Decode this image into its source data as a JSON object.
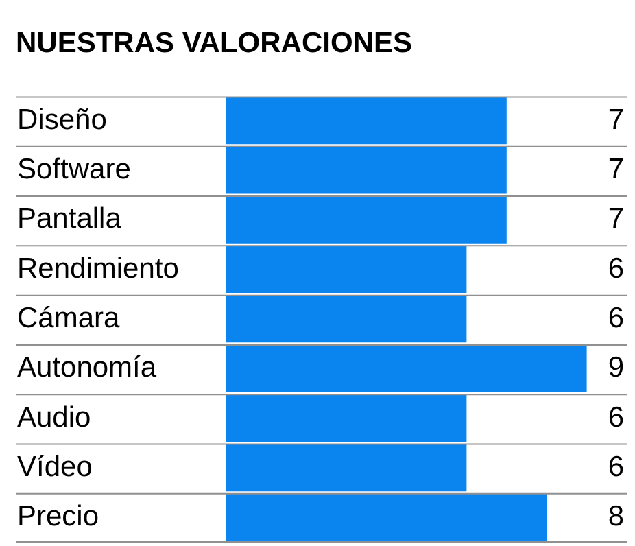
{
  "chart_data": {
    "type": "bar",
    "orientation": "horizontal",
    "title": "NUESTRAS VALORACIONES",
    "categories": [
      "Diseño",
      "Software",
      "Pantalla",
      "Rendimiento",
      "Cámara",
      "Autonomía",
      "Audio",
      "Vídeo",
      "Precio"
    ],
    "values": [
      7,
      7,
      7,
      6,
      6,
      9,
      6,
      6,
      8
    ],
    "color": "#0a84ee",
    "xlim": [
      0,
      10
    ],
    "tick_labels": "y",
    "grid": "y",
    "data_labels": true
  }
}
